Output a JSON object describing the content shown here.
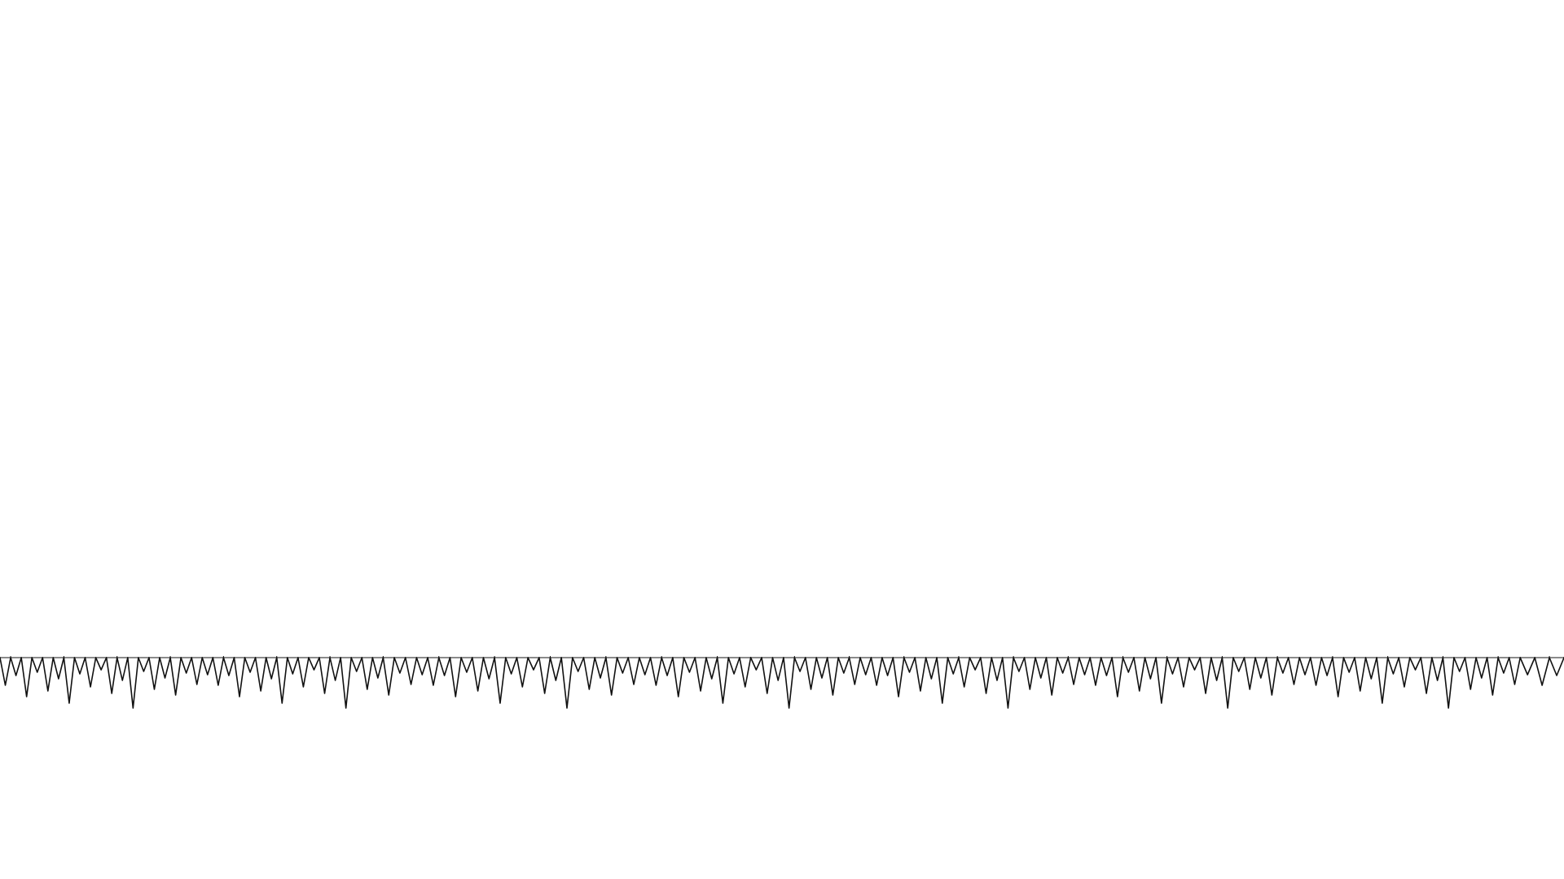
{
  "page": {
    "background": "#ffffff",
    "stroke_color": "#111111",
    "baseline_color": "#8a8a8a"
  },
  "waveform": {
    "pattern": [
      34,
      22,
      48,
      18,
      41,
      26,
      56,
      20,
      36,
      15,
      44,
      28,
      62,
      17,
      39,
      25,
      46,
      19,
      33,
      21
    ],
    "segments": [
      {
        "start_ratio": 0.0,
        "end_ratio": 0.245,
        "density": 0.34
      },
      {
        "start_ratio": 0.245,
        "end_ratio": 0.48,
        "density": 0.31
      },
      {
        "start_ratio": 0.48,
        "end_ratio": 0.725,
        "density": 0.33
      },
      {
        "start_ratio": 0.725,
        "end_ratio": 0.972,
        "density": 0.32
      },
      {
        "start_ratio": 0.972,
        "end_ratio": 1.0,
        "density": 0.22
      }
    ]
  }
}
